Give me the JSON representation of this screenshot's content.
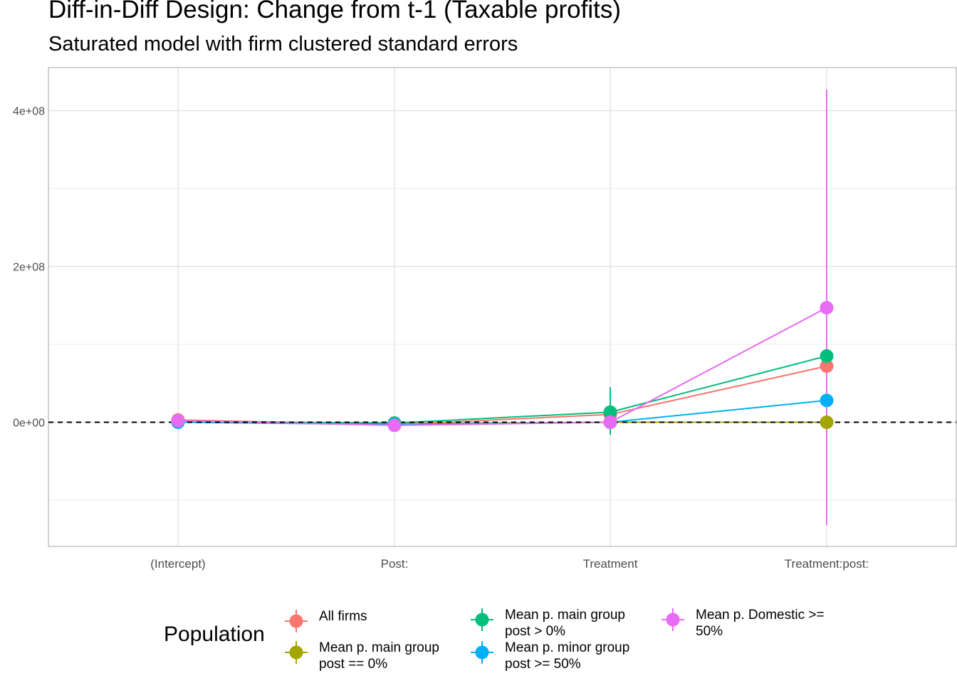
{
  "chart_data": {
    "type": "scatter",
    "title": "Diff-in-Diff Design: Change from t-1 (Taxable profits)",
    "subtitle": "Saturated model with firm clustered standard errors",
    "xlabel": "",
    "ylabel": "",
    "categories": [
      "(Intercept)",
      "Post:",
      "Treatment",
      "Treatment:post:"
    ],
    "y_tick_labels": [
      "0e+00",
      "2e+08",
      "4e+08"
    ],
    "y_ticks": [
      0,
      200000000,
      400000000
    ],
    "ylim": [
      -157000000,
      450000000
    ],
    "reference_line": 0,
    "grid": true,
    "legend_position": "bottom",
    "legend_title": "Population",
    "series": [
      {
        "name": "All firms",
        "color": "#F8766D",
        "values": [
          3000000,
          -3000000,
          10000000,
          72000000
        ],
        "lower": [
          null,
          null,
          null,
          null
        ],
        "upper": [
          null,
          null,
          null,
          null
        ]
      },
      {
        "name": "Mean p. main group\npost == 0%",
        "color": "#A3A500",
        "values": [
          1000000,
          -2000000,
          0,
          0
        ],
        "lower": [
          null,
          null,
          null,
          null
        ],
        "upper": [
          null,
          null,
          null,
          null
        ]
      },
      {
        "name": "Mean p. main group\npost > 0%",
        "color": "#00BF7D",
        "values": [
          1000000,
          -1000000,
          13000000,
          85000000
        ],
        "lower": [
          null,
          null,
          -16000000,
          null
        ],
        "upper": [
          null,
          null,
          45000000,
          null
        ]
      },
      {
        "name": "Mean p. minor group\npost >= 50%",
        "color": "#00B0F6",
        "values": [
          0,
          -3000000,
          0,
          28000000
        ],
        "lower": [
          null,
          null,
          null,
          null
        ],
        "upper": [
          null,
          null,
          null,
          null
        ]
      },
      {
        "name": "Mean p. Domestic >=\n50%",
        "color": "#E76BF3",
        "values": [
          2000000,
          -4000000,
          0,
          147000000
        ],
        "lower": [
          null,
          null,
          null,
          -132000000
        ],
        "upper": [
          null,
          null,
          null,
          427000000
        ]
      }
    ]
  }
}
